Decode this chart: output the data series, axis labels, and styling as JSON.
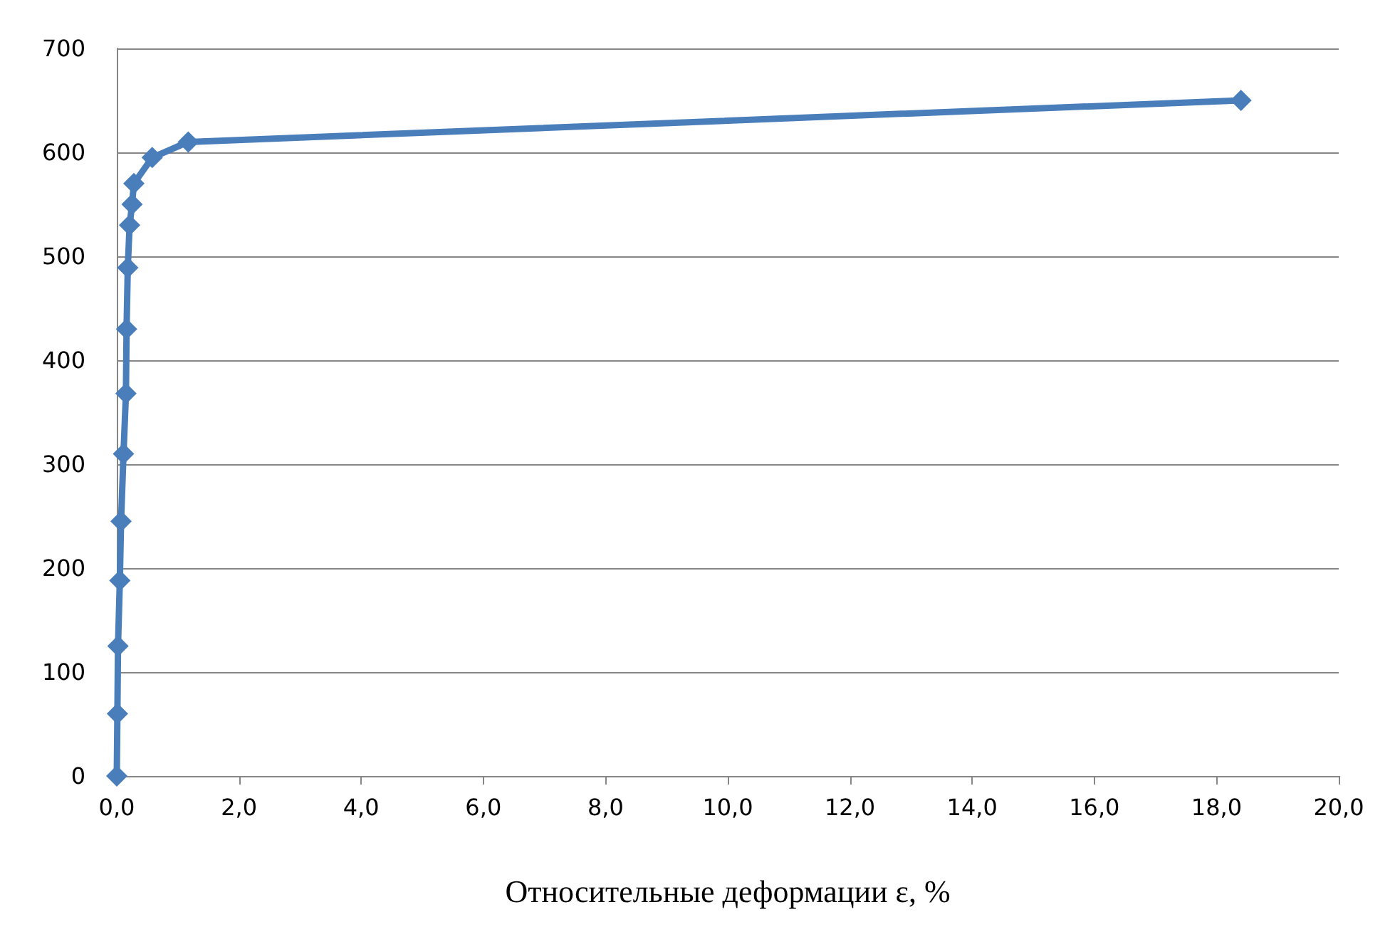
{
  "chart_data": {
    "type": "line",
    "xlabel": "Относительные деформации ε, %",
    "x": [
      0,
      0.01,
      0.02,
      0.05,
      0.07,
      0.11,
      0.15,
      0.16,
      0.18,
      0.21,
      0.25,
      0.28,
      0.58,
      1.17,
      18.4
    ],
    "series": [
      {
        "color": "#4a7ebb",
        "values": [
          0,
          60,
          125,
          188,
          245,
          310,
          368,
          430,
          489,
          530,
          550,
          570,
          595,
          610,
          650
        ]
      }
    ],
    "xlim": [
      0,
      20
    ],
    "xticks": [
      {
        "value": 0,
        "label": "0,0"
      },
      {
        "value": 2,
        "label": "2,0"
      },
      {
        "value": 4,
        "label": "4,0"
      },
      {
        "value": 6,
        "label": "6,0"
      },
      {
        "value": 8,
        "label": "8,0"
      },
      {
        "value": 10,
        "label": "10,0"
      },
      {
        "value": 12,
        "label": "12,0"
      },
      {
        "value": 14,
        "label": "14,0"
      },
      {
        "value": 16,
        "label": "16,0"
      },
      {
        "value": 18,
        "label": "18,0"
      },
      {
        "value": 20,
        "label": "20,0"
      }
    ],
    "ylim": [
      0,
      700
    ],
    "yticks": [
      0,
      100,
      200,
      300,
      400,
      500,
      600,
      700
    ],
    "grid": "y",
    "marker": "diamond",
    "line_style": "solid"
  }
}
